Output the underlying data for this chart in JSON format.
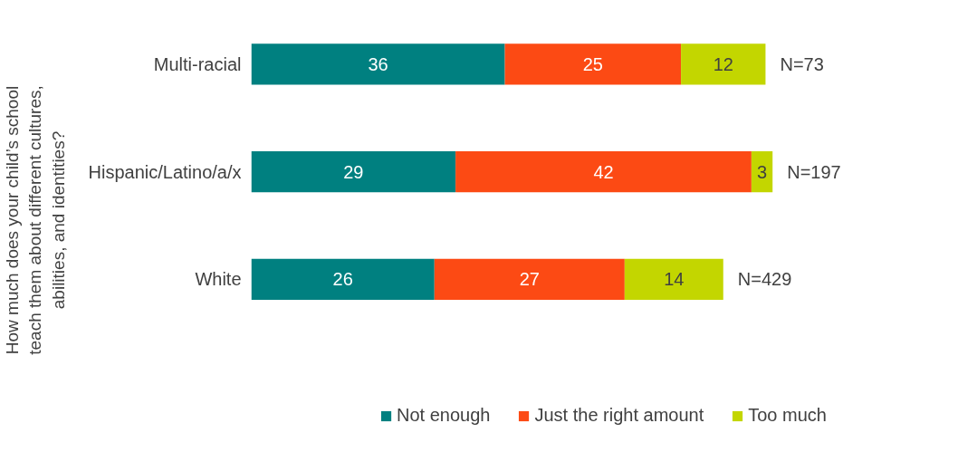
{
  "chart_data": {
    "type": "bar",
    "orientation": "horizontal",
    "stacked": true,
    "ylabel": "How much does your child’s school teach them about different cultures, abilities, and identities?",
    "categories": [
      "Multi-racial",
      "Hispanic/Latino/a/x",
      "White"
    ],
    "series": [
      {
        "name": "Not enough",
        "color": "#008080",
        "values": [
          36,
          29,
          26
        ]
      },
      {
        "name": "Just the right amount",
        "color": "#fc4a14",
        "values": [
          25,
          42,
          27
        ]
      },
      {
        "name": "Too much",
        "color": "#c3d600",
        "values": [
          12,
          3,
          14
        ]
      }
    ],
    "data_labels": true,
    "annotations": [
      {
        "text": "N=73",
        "x": 73,
        "y": "Multi-racial"
      },
      {
        "text": "N=197",
        "x": 74,
        "y": "Hispanic/Latino/a/x"
      },
      {
        "text": "N=429",
        "x": 67,
        "y": "White"
      }
    ],
    "legend": "bottom",
    "grid": false
  }
}
